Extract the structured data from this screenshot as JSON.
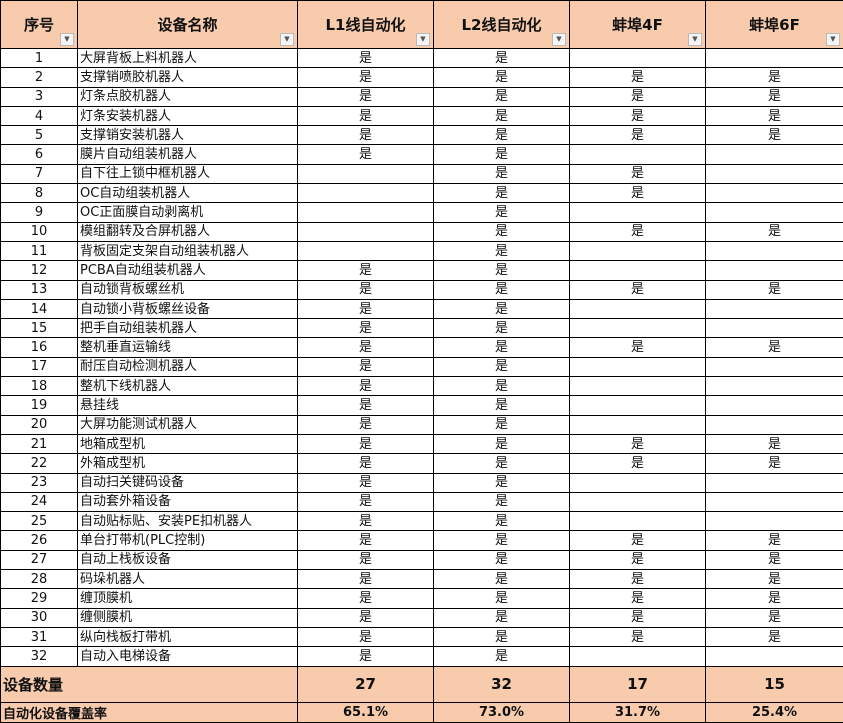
{
  "headers": [
    "序号",
    "设备名称",
    "L1线自动化",
    "L2线自动化",
    "蚌埠4F",
    "蚌埠6F"
  ],
  "filter_icon": "dropdown-arrow-icon",
  "colors": {
    "header_fill": "#f8cbad",
    "border": "#000000"
  },
  "yes": "是",
  "rows": [
    {
      "no": "1",
      "name": "大屏背板上料机器人",
      "l1": "是",
      "l2": "是",
      "f4": "",
      "f6": ""
    },
    {
      "no": "2",
      "name": "支撑销喷胶机器人",
      "l1": "是",
      "l2": "是",
      "f4": "是",
      "f6": "是"
    },
    {
      "no": "3",
      "name": "灯条点胶机器人",
      "l1": "是",
      "l2": "是",
      "f4": "是",
      "f6": "是"
    },
    {
      "no": "4",
      "name": "灯条安装机器人",
      "l1": "是",
      "l2": "是",
      "f4": "是",
      "f6": "是"
    },
    {
      "no": "5",
      "name": "支撑销安装机器人",
      "l1": "是",
      "l2": "是",
      "f4": "是",
      "f6": "是"
    },
    {
      "no": "6",
      "name": "膜片自动组装机器人",
      "l1": "是",
      "l2": "是",
      "f4": "",
      "f6": ""
    },
    {
      "no": "7",
      "name": "自下往上锁中框机器人",
      "l1": "",
      "l2": "是",
      "f4": "是",
      "f6": ""
    },
    {
      "no": "8",
      "name": "OC自动组装机器人",
      "l1": "",
      "l2": "是",
      "f4": "是",
      "f6": ""
    },
    {
      "no": "9",
      "name": "OC正面膜自动剥离机",
      "l1": "",
      "l2": "是",
      "f4": "",
      "f6": ""
    },
    {
      "no": "10",
      "name": "模组翻转及合屏机器人",
      "l1": "",
      "l2": "是",
      "f4": "是",
      "f6": "是"
    },
    {
      "no": "11",
      "name": "背板固定支架自动组装机器人",
      "l1": "",
      "l2": "是",
      "f4": "",
      "f6": ""
    },
    {
      "no": "12",
      "name": "PCBA自动组装机器人",
      "l1": "是",
      "l2": "是",
      "f4": "",
      "f6": ""
    },
    {
      "no": "13",
      "name": "自动锁背板螺丝机",
      "l1": "是",
      "l2": "是",
      "f4": "是",
      "f6": "是"
    },
    {
      "no": "14",
      "name": "自动锁小背板螺丝设备",
      "l1": "是",
      "l2": "是",
      "f4": "",
      "f6": ""
    },
    {
      "no": "15",
      "name": "把手自动组装机器人",
      "l1": "是",
      "l2": "是",
      "f4": "",
      "f6": ""
    },
    {
      "no": "16",
      "name": "整机垂直运输线",
      "l1": "是",
      "l2": "是",
      "f4": "是",
      "f6": "是"
    },
    {
      "no": "17",
      "name": "耐压自动检测机器人",
      "l1": "是",
      "l2": "是",
      "f4": "",
      "f6": ""
    },
    {
      "no": "18",
      "name": "整机下线机器人",
      "l1": "是",
      "l2": "是",
      "f4": "",
      "f6": ""
    },
    {
      "no": "19",
      "name": "悬挂线",
      "l1": "是",
      "l2": "是",
      "f4": "",
      "f6": ""
    },
    {
      "no": "20",
      "name": "大屏功能测试机器人",
      "l1": "是",
      "l2": "是",
      "f4": "",
      "f6": ""
    },
    {
      "no": "21",
      "name": "地箱成型机",
      "l1": "是",
      "l2": "是",
      "f4": "是",
      "f6": "是"
    },
    {
      "no": "22",
      "name": "外箱成型机",
      "l1": "是",
      "l2": "是",
      "f4": "是",
      "f6": "是"
    },
    {
      "no": "23",
      "name": "自动扫关键码设备",
      "l1": "是",
      "l2": "是",
      "f4": "",
      "f6": ""
    },
    {
      "no": "24",
      "name": "自动套外箱设备",
      "l1": "是",
      "l2": "是",
      "f4": "",
      "f6": ""
    },
    {
      "no": "25",
      "name": "自动贴标贴、安装PE扣机器人",
      "l1": "是",
      "l2": "是",
      "f4": "",
      "f6": ""
    },
    {
      "no": "26",
      "name": "单台打带机(PLC控制)",
      "l1": "是",
      "l2": "是",
      "f4": "是",
      "f6": "是"
    },
    {
      "no": "27",
      "name": "自动上栈板设备",
      "l1": "是",
      "l2": "是",
      "f4": "是",
      "f6": "是"
    },
    {
      "no": "28",
      "name": "码垛机器人",
      "l1": "是",
      "l2": "是",
      "f4": "是",
      "f6": "是"
    },
    {
      "no": "29",
      "name": "缠顶膜机",
      "l1": "是",
      "l2": "是",
      "f4": "是",
      "f6": "是"
    },
    {
      "no": "30",
      "name": "缠侧膜机",
      "l1": "是",
      "l2": "是",
      "f4": "是",
      "f6": "是"
    },
    {
      "no": "31",
      "name": "纵向栈板打带机",
      "l1": "是",
      "l2": "是",
      "f4": "是",
      "f6": "是"
    },
    {
      "no": "32",
      "name": "自动入电梯设备",
      "l1": "是",
      "l2": "是",
      "f4": "",
      "f6": ""
    }
  ],
  "summary": {
    "count_label": "设备数量",
    "counts": [
      "27",
      "32",
      "17",
      "15"
    ],
    "rate_label": "自动化设备覆盖率",
    "rates": [
      "65.1%",
      "73.0%",
      "31.7%",
      "25.4%"
    ]
  }
}
